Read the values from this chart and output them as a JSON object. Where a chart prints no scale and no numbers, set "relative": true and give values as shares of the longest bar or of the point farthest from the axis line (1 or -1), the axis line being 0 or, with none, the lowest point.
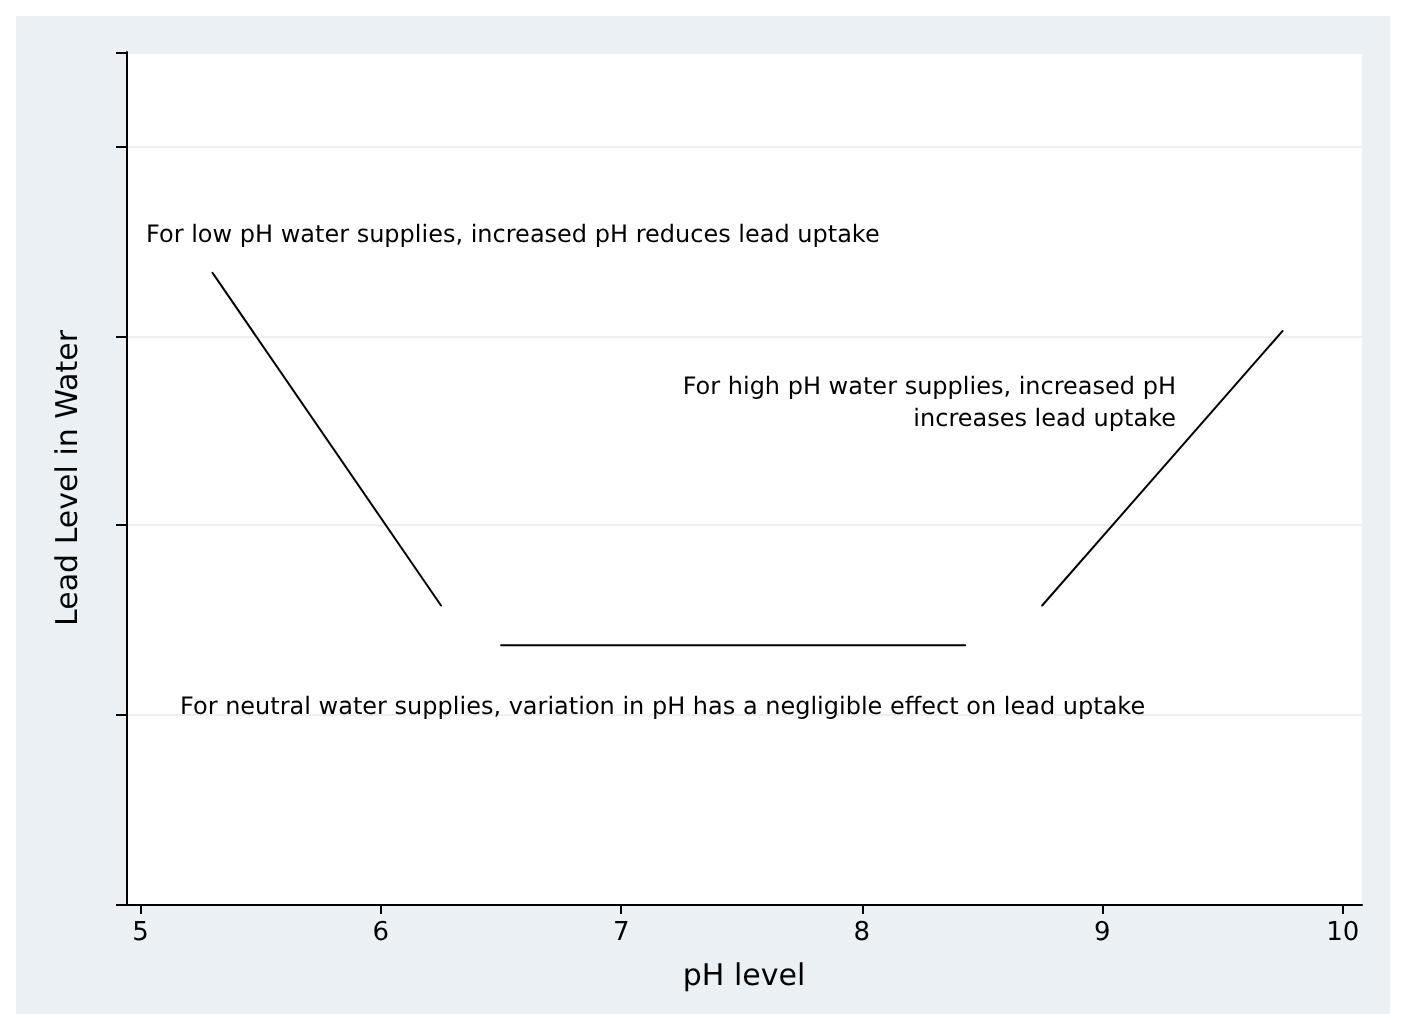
{
  "chart_data": {
    "type": "line",
    "xlabel": "pH level",
    "ylabel": "Lead Level in Water",
    "relative": true,
    "xlim": [
      4.94,
      10.08
    ],
    "xticks": [
      5,
      6,
      7,
      8,
      9,
      10
    ],
    "tick_labels": "x",
    "grid": "y",
    "line_style": "solid",
    "marker": "none",
    "series": [
      {
        "color": "#000000",
        "x": [
          5.3,
          6.25
        ],
        "values": [
          1,
          0.473
        ]
      },
      {
        "color": "#000000",
        "x": [
          6.5,
          8.43
        ],
        "values": [
          0.41,
          0.41
        ]
      },
      {
        "color": "#000000",
        "x": [
          8.75,
          9.75
        ],
        "values": [
          0.473,
          0.908
        ]
      }
    ],
    "annotations": [
      "For low pH water supplies, increased pH reduces lead uptake",
      "For high pH water supplies, increased pH\nincreases lead uptake",
      "For neutral water supplies, variation in pH has a negligible effect on lead uptake"
    ]
  }
}
